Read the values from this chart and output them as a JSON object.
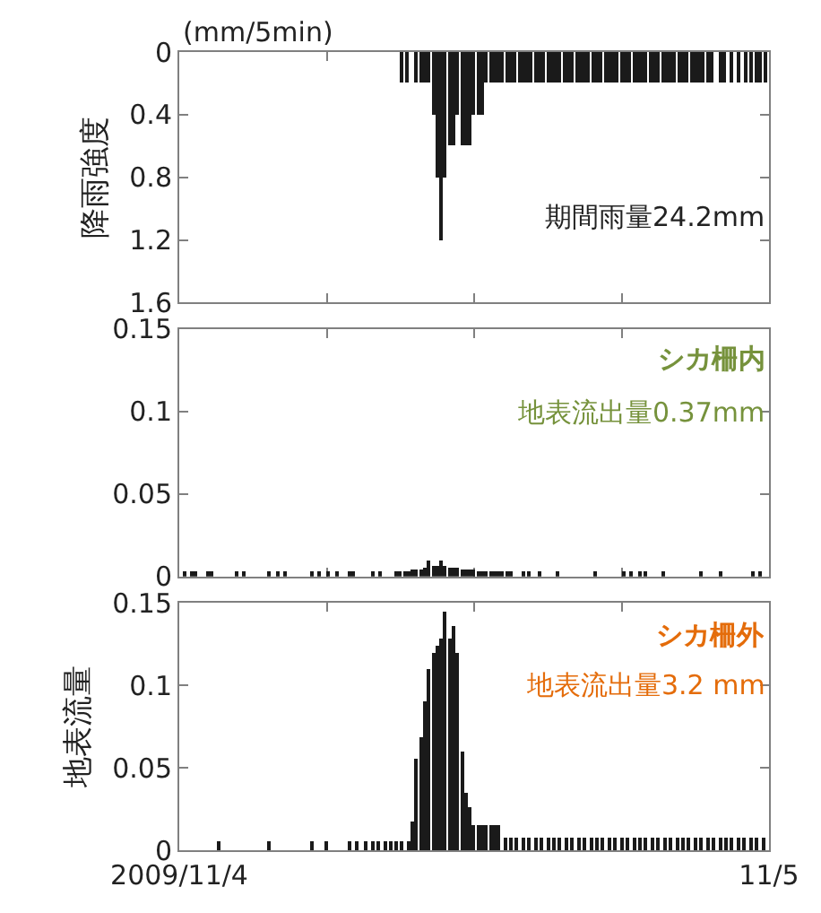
{
  "chart_data": [
    {
      "type": "bar",
      "ylabel": "降雨強度",
      "annotations": [
        "(mm/5min)",
        "期間雨量24.2mm"
      ],
      "tick_labels": "y",
      "xlim": [
        "2009-11-04T00:00",
        "2009-11-05T00:00"
      ],
      "xticks": [
        {
          "value": "2009-11-04T00:00",
          "label": null
        },
        {
          "value": "2009-11-04T06:00",
          "label": null
        },
        {
          "value": "2009-11-04T12:00",
          "label": null
        },
        {
          "value": "2009-11-04T18:00",
          "label": null
        },
        {
          "value": "2009-11-05T00:00",
          "label": null
        }
      ],
      "ylim": [
        1.6,
        0
      ],
      "yticks": [
        0,
        0.4,
        0.8,
        1.2,
        1.6
      ],
      "series": [
        {
          "color": "#1a1a1a",
          "x": [
            "2009-11-04T09:05",
            "2009-11-04T09:15",
            "2009-11-04T09:40",
            "2009-11-04T09:50",
            "2009-11-04T10:00",
            "2009-11-04T10:10",
            "2009-11-04T10:20",
            "2009-11-04T10:30",
            "2009-11-04T10:40",
            "2009-11-04T10:50",
            "2009-11-04T11:00",
            "2009-11-04T11:10",
            "2009-11-04T11:20",
            "2009-11-04T11:30",
            "2009-11-04T11:40",
            "2009-11-04T11:50",
            "2009-11-04T12:00",
            "2009-11-04T12:10",
            "2009-11-04T12:20",
            "2009-11-04T12:30",
            "2009-11-04T12:40",
            "2009-11-04T12:50",
            "2009-11-04T13:00",
            "2009-11-04T13:10",
            "2009-11-04T13:20",
            "2009-11-04T13:30",
            "2009-11-04T13:40",
            "2009-11-04T13:50",
            "2009-11-04T14:00",
            "2009-11-04T14:10",
            "2009-11-04T14:20",
            "2009-11-04T14:30",
            "2009-11-04T14:40",
            "2009-11-04T14:50",
            "2009-11-04T15:00",
            "2009-11-04T15:10",
            "2009-11-04T15:20",
            "2009-11-04T15:30",
            "2009-11-04T15:40",
            "2009-11-04T15:50",
            "2009-11-04T16:00",
            "2009-11-04T16:10",
            "2009-11-04T16:20",
            "2009-11-04T16:30",
            "2009-11-04T16:40",
            "2009-11-04T16:50",
            "2009-11-04T17:00",
            "2009-11-04T17:10",
            "2009-11-04T17:20",
            "2009-11-04T17:30",
            "2009-11-04T17:40",
            "2009-11-04T17:50",
            "2009-11-04T18:00",
            "2009-11-04T18:10",
            "2009-11-04T18:20",
            "2009-11-04T18:30",
            "2009-11-04T18:40",
            "2009-11-04T18:50",
            "2009-11-04T19:00",
            "2009-11-04T19:10",
            "2009-11-04T19:20",
            "2009-11-04T19:30",
            "2009-11-04T19:40",
            "2009-11-04T19:50",
            "2009-11-04T20:00",
            "2009-11-04T20:10",
            "2009-11-04T20:20",
            "2009-11-04T20:30",
            "2009-11-04T20:40",
            "2009-11-04T20:50",
            "2009-11-04T21:00",
            "2009-11-04T21:10",
            "2009-11-04T21:20",
            "2009-11-04T21:30",
            "2009-11-04T21:40",
            "2009-11-04T22:00",
            "2009-11-04T22:10",
            "2009-11-04T22:30",
            "2009-11-04T22:45",
            "2009-11-04T23:05",
            "2009-11-04T23:15",
            "2009-11-04T23:30",
            "2009-11-04T23:40",
            "2009-11-04T23:50"
          ],
          "values": [
            0.2,
            0.2,
            0.2,
            0.2,
            0.2,
            0.2,
            0.4,
            0.8,
            1.2,
            0.8,
            0.6,
            0.6,
            0.4,
            0.6,
            0.6,
            0.6,
            0.4,
            0.4,
            0.4,
            0.2,
            0.2,
            0.2,
            0.2,
            0.2,
            0.2,
            0.2,
            0.2,
            0.2,
            0.2,
            0.2,
            0.2,
            0.2,
            0.2,
            0.2,
            0.2,
            0.2,
            0.2,
            0.2,
            0.2,
            0.2,
            0.2,
            0.2,
            0.2,
            0.2,
            0.2,
            0.2,
            0.2,
            0.2,
            0.2,
            0.2,
            0.2,
            0.2,
            0.2,
            0.2,
            0.2,
            0.2,
            0.2,
            0.2,
            0.2,
            0.2,
            0.2,
            0.2,
            0.2,
            0.2,
            0.2,
            0.2,
            0.2,
            0.2,
            0.2,
            0.2,
            0.2,
            0.2,
            0.2,
            0.2,
            0.2,
            0.2,
            0.2,
            0.2,
            0.2,
            0.2,
            0.2,
            0.2,
            0.2,
            0.2
          ]
        }
      ]
    },
    {
      "type": "bar",
      "annotations": [
        "シカ柵内",
        "地表流出量0.37mm"
      ],
      "tick_labels": "y",
      "xlim": [
        "2009-11-04T00:00",
        "2009-11-05T00:00"
      ],
      "xticks": [
        {
          "value": "2009-11-04T00:00",
          "label": null
        },
        {
          "value": "2009-11-04T06:00",
          "label": null
        },
        {
          "value": "2009-11-04T12:00",
          "label": null
        },
        {
          "value": "2009-11-04T18:00",
          "label": null
        },
        {
          "value": "2009-11-05T00:00",
          "label": null
        }
      ],
      "ylim": [
        0,
        0.15
      ],
      "yticks": [
        0,
        0.05,
        0.1,
        0.15
      ],
      "series": [
        {
          "color": "#1a1a1a",
          "x": [
            "2009-11-04T00:15",
            "2009-11-04T00:30",
            "2009-11-04T00:40",
            "2009-11-04T01:10",
            "2009-11-04T01:20",
            "2009-11-04T02:20",
            "2009-11-04T02:40",
            "2009-11-04T03:40",
            "2009-11-04T04:00",
            "2009-11-04T04:20",
            "2009-11-04T05:25",
            "2009-11-04T05:40",
            "2009-11-04T06:05",
            "2009-11-04T06:25",
            "2009-11-04T06:55",
            "2009-11-04T07:05",
            "2009-11-04T07:55",
            "2009-11-04T08:10",
            "2009-11-04T08:50",
            "2009-11-04T09:00",
            "2009-11-04T09:10",
            "2009-11-04T09:20",
            "2009-11-04T09:30",
            "2009-11-04T09:40",
            "2009-11-04T09:50",
            "2009-11-04T10:00",
            "2009-11-04T10:10",
            "2009-11-04T10:20",
            "2009-11-04T10:30",
            "2009-11-04T10:40",
            "2009-11-04T10:50",
            "2009-11-04T11:00",
            "2009-11-04T11:10",
            "2009-11-04T11:20",
            "2009-11-04T11:30",
            "2009-11-04T11:40",
            "2009-11-04T11:50",
            "2009-11-04T12:00",
            "2009-11-04T12:10",
            "2009-11-04T12:20",
            "2009-11-04T12:30",
            "2009-11-04T12:40",
            "2009-11-04T12:50",
            "2009-11-04T13:00",
            "2009-11-04T13:10",
            "2009-11-04T13:20",
            "2009-11-04T13:30",
            "2009-11-04T14:00",
            "2009-11-04T14:15",
            "2009-11-04T14:40",
            "2009-11-04T15:25",
            "2009-11-04T16:55",
            "2009-11-04T18:05",
            "2009-11-04T18:25",
            "2009-11-04T18:45",
            "2009-11-04T19:00",
            "2009-11-04T19:40",
            "2009-11-04T21:15",
            "2009-11-04T22:00",
            "2009-11-04T23:20",
            "2009-11-04T23:40"
          ],
          "values": [
            0.003,
            0.003,
            0.003,
            0.003,
            0.003,
            0.003,
            0.003,
            0.003,
            0.003,
            0.003,
            0.003,
            0.003,
            0.003,
            0.003,
            0.003,
            0.003,
            0.003,
            0.003,
            0.003,
            0.003,
            0.003,
            0.003,
            0.004,
            0.004,
            0.004,
            0.005,
            0.01,
            0.006,
            0.006,
            0.01,
            0.006,
            0.005,
            0.005,
            0.005,
            0.004,
            0.004,
            0.004,
            0.004,
            0.003,
            0.003,
            0.003,
            0.003,
            0.003,
            0.003,
            0.003,
            0.003,
            0.003,
            0.003,
            0.003,
            0.003,
            0.003,
            0.003,
            0.003,
            0.003,
            0.003,
            0.003,
            0.003,
            0.003,
            0.003,
            0.003,
            0.003
          ]
        }
      ]
    },
    {
      "type": "bar",
      "ylabel": "地表流量",
      "annotations": [
        "シカ柵外",
        "地表流出量3.2 mm"
      ],
      "xlim": [
        "2009-11-04T00:00",
        "2009-11-05T00:00"
      ],
      "xticks": [
        {
          "value": "2009-11-04T00:00",
          "label": "2009/11/4"
        },
        {
          "value": "2009-11-04T06:00",
          "label": null
        },
        {
          "value": "2009-11-04T12:00",
          "label": null
        },
        {
          "value": "2009-11-04T18:00",
          "label": null
        },
        {
          "value": "2009-11-05T00:00",
          "label": "11/5"
        }
      ],
      "ylim": [
        0,
        0.15
      ],
      "yticks": [
        0,
        0.05,
        0.1,
        0.15
      ],
      "series": [
        {
          "color": "#1a1a1a",
          "x": [
            "2009-11-04T01:35",
            "2009-11-04T03:40",
            "2009-11-04T05:25",
            "2009-11-04T06:00",
            "2009-11-04T06:55",
            "2009-11-04T07:15",
            "2009-11-04T07:35",
            "2009-11-04T07:55",
            "2009-11-04T08:05",
            "2009-11-04T08:25",
            "2009-11-04T08:35",
            "2009-11-04T08:50",
            "2009-11-04T09:05",
            "2009-11-04T09:20",
            "2009-11-04T09:30",
            "2009-11-04T09:40",
            "2009-11-04T09:50",
            "2009-11-04T10:00",
            "2009-11-04T10:10",
            "2009-11-04T10:20",
            "2009-11-04T10:30",
            "2009-11-04T10:40",
            "2009-11-04T10:50",
            "2009-11-04T11:00",
            "2009-11-04T11:10",
            "2009-11-04T11:20",
            "2009-11-04T11:30",
            "2009-11-04T11:40",
            "2009-11-04T11:50",
            "2009-11-04T12:00",
            "2009-11-04T12:10",
            "2009-11-04T12:20",
            "2009-11-04T12:30",
            "2009-11-04T12:40",
            "2009-11-04T12:50",
            "2009-11-04T13:00",
            "2009-11-04T13:15",
            "2009-11-04T13:30",
            "2009-11-04T13:45",
            "2009-11-04T14:00",
            "2009-11-04T14:15",
            "2009-11-04T14:30",
            "2009-11-04T14:45",
            "2009-11-04T15:00",
            "2009-11-04T15:15",
            "2009-11-04T15:30",
            "2009-11-04T15:45",
            "2009-11-04T16:00",
            "2009-11-04T16:15",
            "2009-11-04T16:30",
            "2009-11-04T16:45",
            "2009-11-04T17:00",
            "2009-11-04T17:15",
            "2009-11-04T17:30",
            "2009-11-04T17:45",
            "2009-11-04T18:00",
            "2009-11-04T18:15",
            "2009-11-04T18:30",
            "2009-11-04T18:45",
            "2009-11-04T19:00",
            "2009-11-04T19:15",
            "2009-11-04T19:30",
            "2009-11-04T19:45",
            "2009-11-04T20:00",
            "2009-11-04T20:15",
            "2009-11-04T20:30",
            "2009-11-04T20:45",
            "2009-11-04T21:00",
            "2009-11-04T21:15",
            "2009-11-04T21:30",
            "2009-11-04T21:45",
            "2009-11-04T22:00",
            "2009-11-04T22:15",
            "2009-11-04T22:30",
            "2009-11-04T22:45",
            "2009-11-04T23:00",
            "2009-11-04T23:15",
            "2009-11-04T23:30",
            "2009-11-04T23:45"
          ],
          "values": [
            0.005,
            0.005,
            0.005,
            0.005,
            0.005,
            0.005,
            0.005,
            0.005,
            0.005,
            0.005,
            0.005,
            0.005,
            0.005,
            0.005,
            0.017,
            0.055,
            0.068,
            0.09,
            0.11,
            0.12,
            0.124,
            0.128,
            0.145,
            0.128,
            0.136,
            0.12,
            0.06,
            0.035,
            0.026,
            0.015,
            0.015,
            0.015,
            0.015,
            0.015,
            0.015,
            0.015,
            0.008,
            0.008,
            0.008,
            0.008,
            0.008,
            0.008,
            0.008,
            0.008,
            0.008,
            0.008,
            0.008,
            0.008,
            0.008,
            0.008,
            0.008,
            0.008,
            0.008,
            0.008,
            0.008,
            0.008,
            0.008,
            0.008,
            0.008,
            0.008,
            0.008,
            0.008,
            0.008,
            0.008,
            0.008,
            0.008,
            0.008,
            0.008,
            0.008,
            0.008,
            0.008,
            0.008,
            0.008,
            0.008,
            0.008,
            0.008,
            0.008,
            0.008,
            0.008
          ]
        }
      ]
    }
  ]
}
